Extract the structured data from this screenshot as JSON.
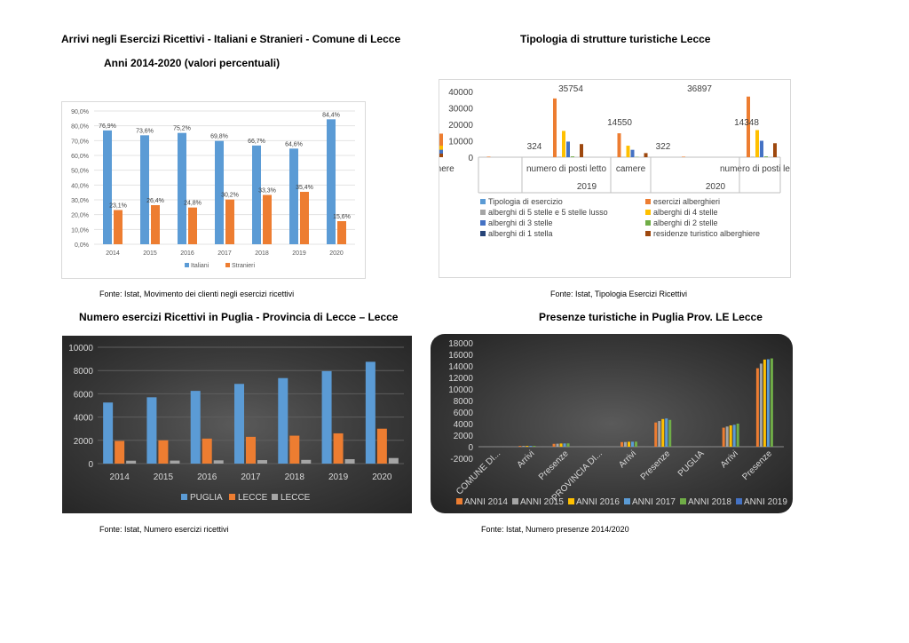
{
  "headers": {
    "c1_title": "Arrivi negli Esercizi Ricettivi -  Italiani e Stranieri - Comune di Lecce",
    "c1_subtitle": "Anni 2014-2020 (valori percentuali)",
    "c2_title": "Tipologia di strutture turistiche Lecce",
    "c3_title": "Numero esercizi Ricettivi in Puglia - Provincia di Lecce – Lecce",
    "c4_title": "Presenze turistiche in Puglia Prov. LE  Lecce"
  },
  "sources": {
    "c1": "Fonte: Istat, Movimento dei clienti negli esercizi ricettivi",
    "c2": "Fonte: Istat, Tipologia Esercizi Ricettivi",
    "c3": "Fonte: Istat, Numero esercizi ricettivi",
    "c4": "Fonte: Istat, Numero presenze 2014/2020"
  },
  "chart_data": [
    {
      "id": "arrivi",
      "type": "bar",
      "categories": [
        "2014",
        "2015",
        "2016",
        "2017",
        "2018",
        "2019",
        "2020"
      ],
      "series": [
        {
          "name": "Italiani",
          "color": "#5b9bd5",
          "values": [
            76.9,
            73.6,
            75.2,
            69.8,
            66.7,
            64.6,
            84.4
          ],
          "labels": [
            "76,9%",
            "73,6%",
            "75,2%",
            "69,8%",
            "66,7%",
            "64,6%",
            "84,4%"
          ]
        },
        {
          "name": "Stranieri",
          "color": "#ed7d31",
          "values": [
            23.1,
            26.4,
            24.8,
            30.2,
            33.3,
            35.4,
            15.6
          ],
          "labels": [
            "23,1%",
            "26,4%",
            "24,8%",
            "30,2%",
            "33,3%",
            "35,4%",
            "15,6%"
          ]
        }
      ],
      "ylim": [
        0,
        90
      ],
      "yticks": [
        "0,0%",
        "10,0%",
        "20,0%",
        "30,0%",
        "40,0%",
        "50,0%",
        "60,0%",
        "70,0%",
        "80,0%",
        "90,0%"
      ],
      "grid": true,
      "legend": "bottom"
    },
    {
      "id": "tipologia",
      "type": "bar",
      "years": [
        "2019",
        "2020"
      ],
      "subcategories": [
        "",
        "numero di posti letto",
        "camere"
      ],
      "series": [
        {
          "name": "Tipologia di esercizio",
          "color": "#5b9bd5"
        },
        {
          "name": "esercizi alberghieri",
          "color": "#ed7d31"
        },
        {
          "name": "alberghi di 5 stelle e 5 stelle lusso",
          "color": "#a5a5a5"
        },
        {
          "name": "alberghi di 4 stelle",
          "color": "#ffc000"
        },
        {
          "name": "alberghi di 3 stelle",
          "color": "#4472c4"
        },
        {
          "name": "alberghi di 2 stelle",
          "color": "#70ad47"
        },
        {
          "name": "alberghi di 1 stella",
          "color": "#264478"
        },
        {
          "name": "residenze turistico alberghiere",
          "color": "#9e480e"
        }
      ],
      "groups": [
        {
          "year": "2019",
          "sub": "",
          "values": [
            0,
            324,
            0,
            0,
            0,
            0,
            0,
            0
          ]
        },
        {
          "year": "2019",
          "sub": "numero di posti letto",
          "values": [
            0,
            35754,
            300,
            16000,
            9500,
            500,
            0,
            8000
          ]
        },
        {
          "year": "2019",
          "sub": "camere",
          "values": [
            0,
            14550,
            150,
            7000,
            4500,
            200,
            0,
            2500
          ]
        },
        {
          "year": "2020",
          "sub": "",
          "values": [
            0,
            322,
            0,
            0,
            0,
            0,
            0,
            0
          ]
        },
        {
          "year": "2020",
          "sub": "numero di posti letto",
          "values": [
            0,
            36897,
            300,
            16500,
            10000,
            500,
            0,
            8500
          ]
        },
        {
          "year": "2020",
          "sub": "camere",
          "values": [
            0,
            14348,
            150,
            7000,
            4500,
            200,
            0,
            2200
          ]
        }
      ],
      "data_labels": [
        "324",
        "35754",
        "14550",
        "322",
        "36897",
        "14348"
      ],
      "ylim": [
        0,
        40000
      ],
      "yticks": [
        "0",
        "10000",
        "20000",
        "30000",
        "40000"
      ],
      "legend": "bottom"
    },
    {
      "id": "esercizi",
      "type": "bar",
      "categories": [
        "2014",
        "2015",
        "2016",
        "2017",
        "2018",
        "2019",
        "2020"
      ],
      "series": [
        {
          "name": "PUGLIA",
          "color": "#5b9bd5",
          "values": [
            5250,
            5700,
            6250,
            6850,
            7350,
            7950,
            8750
          ]
        },
        {
          "name": "LECCE",
          "color": "#ed7d31",
          "values": [
            1950,
            2000,
            2150,
            2300,
            2400,
            2600,
            3000
          ]
        },
        {
          "name": "LECCE",
          "color": "#a5a5a5",
          "values": [
            250,
            260,
            280,
            300,
            320,
            380,
            480
          ]
        }
      ],
      "ylim": [
        0,
        10000
      ],
      "yticks": [
        "0",
        "2000",
        "4000",
        "6000",
        "8000",
        "10000"
      ],
      "grid": true,
      "legend": "bottom"
    },
    {
      "id": "presenze",
      "type": "bar",
      "categories": [
        "COMUNE DI...",
        "Arrivi",
        "Presenze",
        "PROVINCIA DI...",
        "Arrivi",
        "Presenze",
        "PUGLIA",
        "Arrivi",
        "Presenze"
      ],
      "series": [
        {
          "name": "ANNI 2014",
          "color": "#ed7d31",
          "values": [
            0,
            140,
            500,
            0,
            800,
            4200,
            0,
            3300,
            13600
          ]
        },
        {
          "name": "ANNI 2015",
          "color": "#a5a5a5",
          "values": [
            0,
            145,
            520,
            0,
            820,
            4450,
            0,
            3500,
            14400
          ]
        },
        {
          "name": "ANNI 2016",
          "color": "#ffc000",
          "values": [
            0,
            150,
            560,
            0,
            860,
            4800,
            0,
            3700,
            15100
          ]
        },
        {
          "name": "ANNI 2017",
          "color": "#5b9bd5",
          "values": [
            0,
            150,
            570,
            0,
            870,
            4900,
            0,
            3800,
            15150
          ]
        },
        {
          "name": "ANNI 2018",
          "color": "#70ad47",
          "values": [
            0,
            155,
            580,
            0,
            880,
            4650,
            0,
            4000,
            15300
          ]
        },
        {
          "name": "ANNI 2019",
          "color": "#4472c4",
          "values": [
            0,
            0,
            0,
            0,
            0,
            0,
            0,
            0,
            0
          ]
        }
      ],
      "ylim": [
        -2000,
        18000
      ],
      "yticks": [
        "-2000",
        "0",
        "2000",
        "4000",
        "6000",
        "8000",
        "10000",
        "12000",
        "14000",
        "16000",
        "18000"
      ],
      "grid": false,
      "legend": "bottom"
    }
  ]
}
